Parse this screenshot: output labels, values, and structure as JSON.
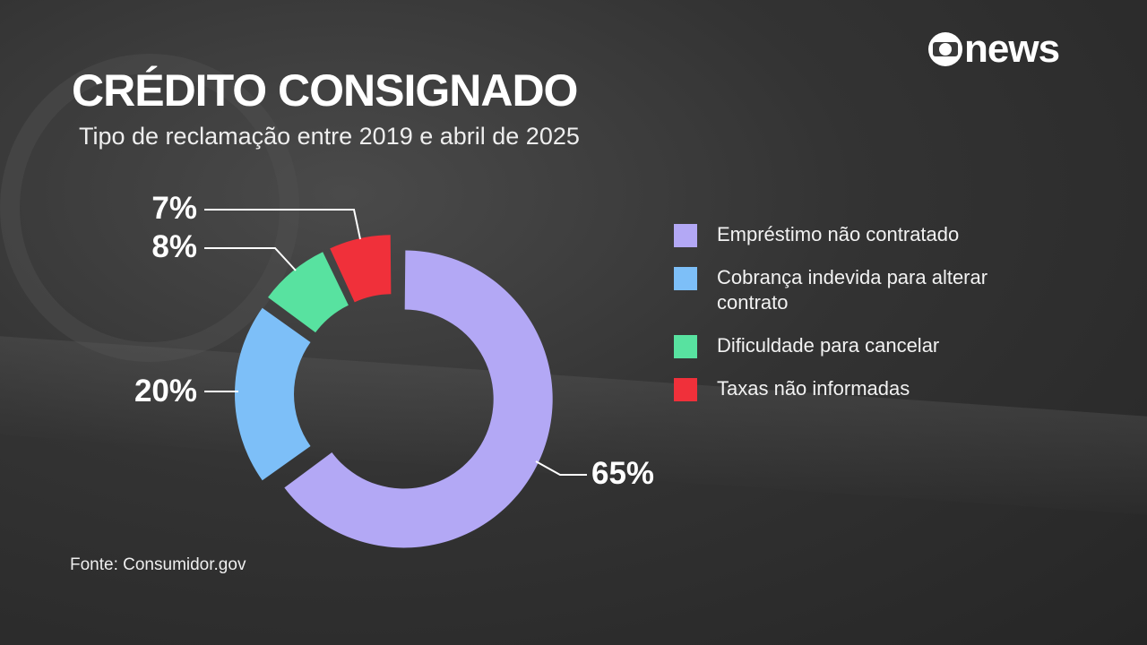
{
  "title": "CRÉDITO CONSIGNADO",
  "subtitle": "Tipo de reclamação entre 2019 e abril de 2025",
  "logo": "news",
  "source": "Fonte: Consumidor.gov",
  "chart_data": {
    "type": "pie",
    "title": "CRÉDITO CONSIGNADO",
    "subtitle": "Tipo de reclamação entre 2019 e abril de 2025",
    "donut": true,
    "legend_position": "right",
    "categories": [
      "Empréstimo não contratado",
      "Cobrança indevida para alterar contrato",
      "Dificuldade para cancelar",
      "Taxas não informadas"
    ],
    "values": [
      65,
      20,
      8,
      7
    ],
    "labels": [
      "65%",
      "20%",
      "8%",
      "7%"
    ],
    "colors": [
      "#b3a8f5",
      "#7dbff8",
      "#58e2a0",
      "#f0303a"
    ]
  }
}
